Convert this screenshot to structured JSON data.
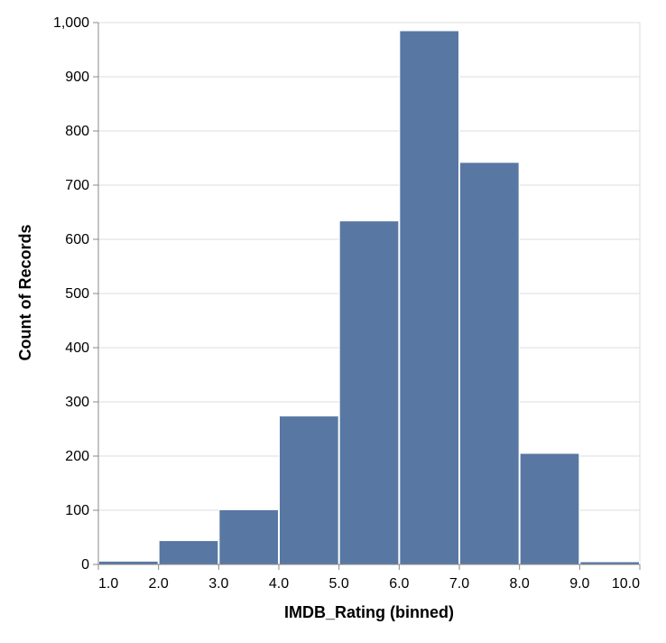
{
  "chart_data": {
    "type": "bar",
    "title": "",
    "xlabel": "IMDB_Rating (binned)",
    "ylabel": "Count of Records",
    "x_ticks": [
      "1.0",
      "2.0",
      "3.0",
      "4.0",
      "5.0",
      "6.0",
      "7.0",
      "8.0",
      "9.0",
      "10.0"
    ],
    "y_ticks": [
      "0",
      "100",
      "200",
      "300",
      "400",
      "500",
      "600",
      "700",
      "800",
      "900",
      "1,000"
    ],
    "bins": [
      {
        "start": 1,
        "end": 2,
        "count": 6
      },
      {
        "start": 2,
        "end": 3,
        "count": 44
      },
      {
        "start": 3,
        "end": 4,
        "count": 101
      },
      {
        "start": 4,
        "end": 5,
        "count": 274
      },
      {
        "start": 5,
        "end": 6,
        "count": 634
      },
      {
        "start": 6,
        "end": 7,
        "count": 985
      },
      {
        "start": 7,
        "end": 8,
        "count": 742
      },
      {
        "start": 8,
        "end": 9,
        "count": 205
      },
      {
        "start": 9,
        "end": 10,
        "count": 5
      }
    ],
    "xlim": [
      1,
      10
    ],
    "ylim": [
      0,
      1000
    ],
    "grid": true,
    "bar_color": "#5878a3"
  }
}
